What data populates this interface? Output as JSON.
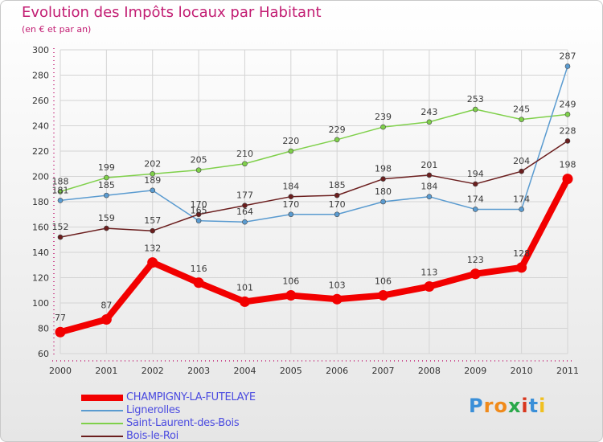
{
  "chart_data": {
    "type": "line",
    "title": "Evolution des Impôts locaux par Habitant",
    "subtitle": "(en € et par an)",
    "xlabel": "",
    "ylabel": "",
    "ylim": [
      60,
      300
    ],
    "yticks": [
      60,
      80,
      100,
      120,
      140,
      160,
      180,
      200,
      220,
      240,
      260,
      280,
      300
    ],
    "x": [
      "2000",
      "2001",
      "2002",
      "2003",
      "2004",
      "2005",
      "2006",
      "2007",
      "2008",
      "2009",
      "2010",
      "2011"
    ],
    "grid": true,
    "legend_position": "bottom-left",
    "series": [
      {
        "name": "Saint-Laurent-des-Bois",
        "color": "#7fd04a",
        "values": [
          188,
          199,
          202,
          205,
          210,
          220,
          229,
          239,
          243,
          253,
          245,
          249
        ]
      },
      {
        "name": "Lignerolles",
        "color": "#5a9bd0",
        "values": [
          181,
          185,
          189,
          165,
          164,
          170,
          170,
          180,
          184,
          174,
          174,
          287
        ]
      },
      {
        "name": "Bois-le-Roi",
        "color": "#6b1e1e",
        "values": [
          152,
          159,
          157,
          170,
          177,
          184,
          185,
          198,
          201,
          194,
          204,
          228
        ]
      },
      {
        "name": "CHAMPIGNY-LA-FUTELAYE",
        "color": "#f20000",
        "values": [
          77,
          87,
          132,
          116,
          101,
          106,
          103,
          106,
          113,
          123,
          128,
          198
        ]
      }
    ]
  },
  "legend": {
    "items": [
      {
        "name": "CHAMPIGNY-LA-FUTELAYE",
        "color": "#f20000"
      },
      {
        "name": "Lignerolles",
        "color": "#5a9bd0"
      },
      {
        "name": "Saint-Laurent-des-Bois",
        "color": "#7fd04a"
      },
      {
        "name": "Bois-le-Roi",
        "color": "#6b1e1e"
      }
    ]
  },
  "logo": {
    "text": "Proxiti",
    "letter_colors": [
      "#3a8fd8",
      "#f08a1a",
      "#f08a1a",
      "#2aa84a",
      "#d8361e",
      "#3a8fd8",
      "#f0c020"
    ]
  }
}
